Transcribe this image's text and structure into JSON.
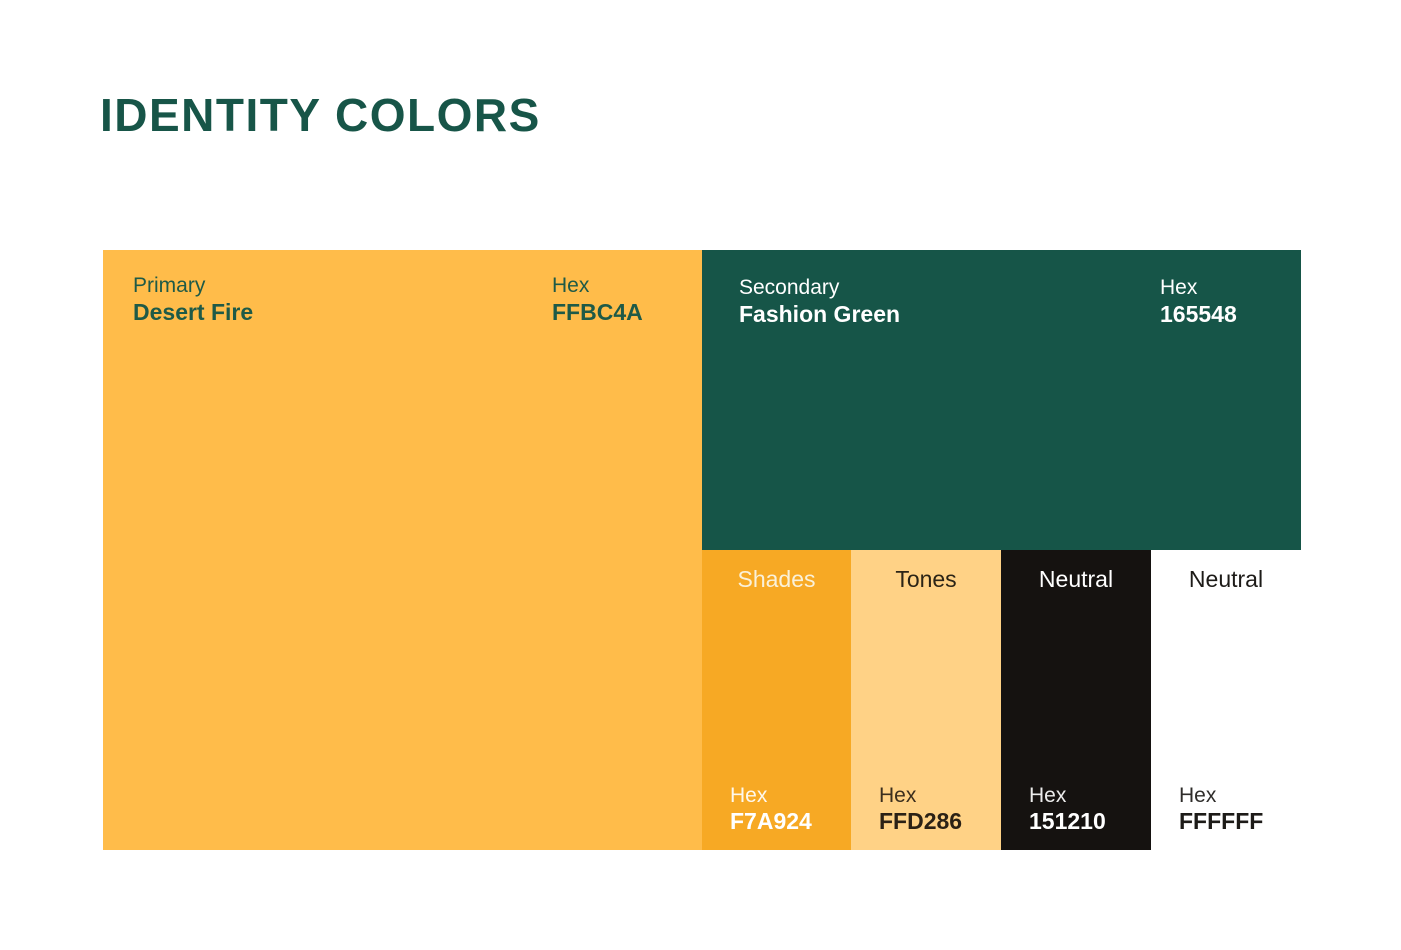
{
  "page": {
    "title": "IDENTITY COLORS",
    "title_color": "#175548",
    "background": "#FFFFFF"
  },
  "palette": {
    "primary": {
      "role": "Primary",
      "name": "Desert Fire",
      "hex_label": "Hex",
      "hex": "FFBC4A",
      "color": "#FFBC4A",
      "text_color": "#1E5A47"
    },
    "secondary": {
      "role": "Secondary",
      "name": "Fashion Green",
      "hex_label": "Hex",
      "hex": "165548",
      "color": "#165548",
      "text_color": "#FFFFFF"
    },
    "swatches": [
      {
        "label": "Shades",
        "hex_label": "Hex",
        "hex": "F7A924",
        "color": "#F7A924",
        "label_color": "#FAF1D9",
        "text_color": "#FFFFFF"
      },
      {
        "label": "Tones",
        "hex_label": "Hex",
        "hex": "FFD286",
        "color": "#FFD286",
        "label_color": "#2B2416",
        "text_color": "#2B2115"
      },
      {
        "label": "Neutral",
        "hex_label": "Hex",
        "hex": "151210",
        "color": "#151210",
        "label_color": "#FFFFFF",
        "text_color": "#FFFFFF"
      },
      {
        "label": "Neutral",
        "hex_label": "Hex",
        "hex": "FFFFFF",
        "color": "#FFFFFF",
        "label_color": "#1D1B18",
        "text_color": "#1D1B18"
      }
    ]
  }
}
